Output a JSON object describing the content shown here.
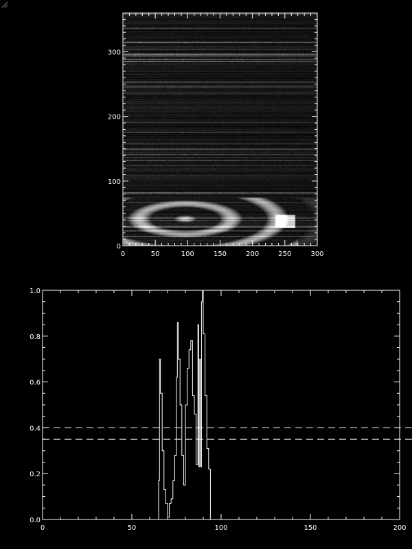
{
  "colors": {
    "background": "#000000",
    "axes": "#ffffff",
    "line": "#ffffff",
    "colormap": "grayscale"
  },
  "chart_data": [
    {
      "type": "heatmap",
      "title": "",
      "xlabel": "",
      "ylabel": "",
      "xlim": [
        0,
        300
      ],
      "ylim": [
        0,
        360
      ],
      "xticks": [
        "0",
        "50",
        "100",
        "150",
        "200",
        "250",
        "300"
      ],
      "yticks": [
        "0",
        "100",
        "200",
        "300"
      ],
      "colormap": "grayscale"
    },
    {
      "type": "line",
      "title": "",
      "xlabel": "",
      "ylabel": "",
      "xlim": [
        0,
        200
      ],
      "ylim": [
        0,
        1.0
      ],
      "xticks": [
        "0",
        "50",
        "100",
        "150",
        "200"
      ],
      "yticks": [
        "0.0",
        "0.2",
        "0.4",
        "0.6",
        "0.8",
        "1.0"
      ],
      "x": [
        64,
        65,
        65.5,
        66,
        67,
        68,
        69,
        70,
        71,
        72,
        73,
        74,
        75,
        75.5,
        76,
        77,
        78,
        79,
        80,
        81,
        82,
        83,
        84,
        85,
        86,
        87,
        87.5,
        88,
        88.5,
        89,
        89.5,
        90,
        91,
        92,
        93,
        94
      ],
      "y": [
        0.0,
        0.17,
        0.7,
        0.55,
        0.3,
        0.13,
        0.07,
        0.01,
        0.07,
        0.09,
        0.17,
        0.28,
        0.62,
        0.86,
        0.7,
        0.5,
        0.28,
        0.15,
        0.5,
        0.66,
        0.74,
        0.78,
        0.54,
        0.46,
        0.24,
        0.85,
        0.23,
        0.7,
        0.23,
        0.95,
        1.0,
        0.81,
        0.54,
        0.31,
        0.22,
        0.0
      ],
      "hlines": [
        {
          "y": 0.4,
          "style": "dashed"
        },
        {
          "y": 0.35,
          "style": "dashed"
        }
      ]
    }
  ]
}
